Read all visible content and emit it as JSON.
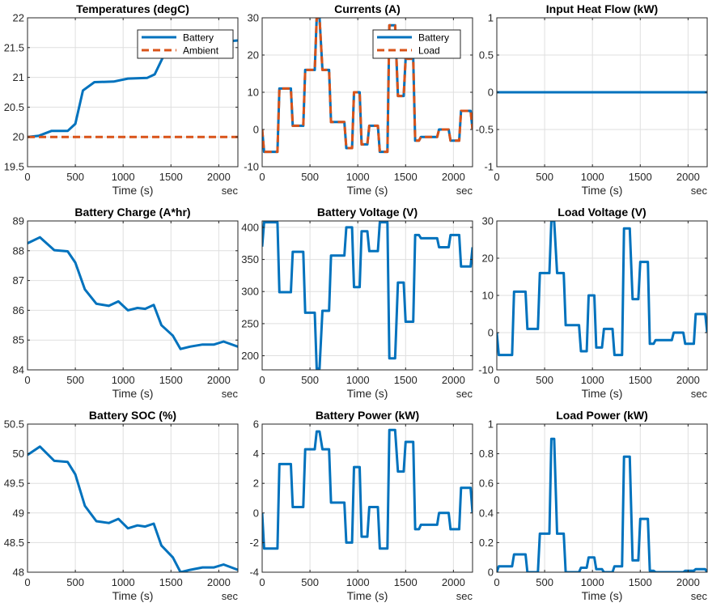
{
  "colors": {
    "blue": "#0072BD",
    "orange": "#D95319",
    "grid": "#dfdfdf",
    "axis": "#262626"
  },
  "chart_data": [
    {
      "type": "line",
      "title": "Temperatures (degC)",
      "xlabel": "Time (s)",
      "xunit": "sec",
      "xlim": [
        0,
        2200
      ],
      "ylim": [
        19.5,
        22
      ],
      "xticks": [
        0,
        500,
        1000,
        1500,
        2000
      ],
      "xtick_labels": [
        "0",
        "500",
        "1000",
        "1500",
        "2000"
      ],
      "yticks": [
        19.5,
        20,
        20.5,
        21,
        21.5,
        22
      ],
      "ytick_labels": [
        "19.5",
        "20",
        "20.5",
        "21",
        "21.5",
        "22"
      ],
      "grid": true,
      "legend": "top-right",
      "series": [
        {
          "name": "Battery",
          "color": "#0072BD",
          "dash": false,
          "x": [
            0,
            120,
            250,
            420,
            500,
            580,
            700,
            900,
            1050,
            1250,
            1330,
            1420,
            1500,
            2050,
            2200
          ],
          "y": [
            20.0,
            20.02,
            20.1,
            20.1,
            20.22,
            20.78,
            20.92,
            20.93,
            20.98,
            20.99,
            21.05,
            21.35,
            21.6,
            21.6,
            21.62
          ]
        },
        {
          "name": "Ambient",
          "color": "#D95319",
          "dash": true,
          "x": [
            0,
            2200
          ],
          "y": [
            20.0,
            20.0
          ]
        }
      ]
    },
    {
      "type": "line",
      "title": "Currents (A)",
      "xlabel": "Time (s)",
      "xunit": "sec",
      "xlim": [
        0,
        2200
      ],
      "ylim": [
        -10,
        30
      ],
      "xticks": [
        0,
        500,
        1000,
        1500,
        2000
      ],
      "xtick_labels": [
        "0",
        "500",
        "1000",
        "1500",
        "2000"
      ],
      "yticks": [
        -10,
        0,
        10,
        20,
        30
      ],
      "ytick_labels": [
        "-10",
        "0",
        "10",
        "20",
        "30"
      ],
      "grid": true,
      "legend": "top-right",
      "series": [
        {
          "name": "Battery",
          "color": "#0072BD",
          "dash": false,
          "x": [
            0,
            20,
            40,
            160,
            180,
            300,
            320,
            430,
            450,
            550,
            570,
            600,
            630,
            700,
            720,
            750,
            780,
            860,
            880,
            940,
            960,
            1020,
            1040,
            1100,
            1120,
            1210,
            1230,
            1310,
            1330,
            1390,
            1420,
            1480,
            1500,
            1580,
            1600,
            1640,
            1660,
            1720,
            1740,
            1830,
            1850,
            1950,
            1970,
            2060,
            2080,
            2180,
            2200
          ],
          "y": [
            0,
            -6,
            -6,
            -6,
            11,
            11,
            1,
            1,
            16,
            16,
            30,
            30,
            16,
            16,
            2,
            2,
            2,
            2,
            -5,
            -5,
            10,
            10,
            -4,
            -4,
            1,
            1,
            -6,
            -6,
            28,
            28,
            9,
            9,
            19,
            19,
            -3,
            -3,
            -2,
            -2,
            -2,
            -2,
            0,
            0,
            -3,
            -3,
            5,
            5,
            0
          ]
        },
        {
          "name": "Load",
          "color": "#D95319",
          "dash": true,
          "x": [
            0,
            20,
            40,
            160,
            180,
            300,
            320,
            430,
            450,
            550,
            570,
            600,
            630,
            700,
            720,
            750,
            780,
            860,
            880,
            940,
            960,
            1020,
            1040,
            1100,
            1120,
            1210,
            1230,
            1310,
            1330,
            1390,
            1420,
            1480,
            1500,
            1580,
            1600,
            1640,
            1660,
            1720,
            1740,
            1830,
            1850,
            1950,
            1970,
            2060,
            2080,
            2180,
            2200
          ],
          "y": [
            0,
            -6,
            -6,
            -6,
            11,
            11,
            1,
            1,
            16,
            16,
            30,
            30,
            16,
            16,
            2,
            2,
            2,
            2,
            -5,
            -5,
            10,
            10,
            -4,
            -4,
            1,
            1,
            -6,
            -6,
            28,
            28,
            9,
            9,
            19,
            19,
            -3,
            -3,
            -2,
            -2,
            -2,
            -2,
            0,
            0,
            -3,
            -3,
            5,
            5,
            0
          ]
        }
      ]
    },
    {
      "type": "line",
      "title": "Input Heat Flow (kW)",
      "xlabel": "Time (s)",
      "xunit": "sec",
      "xlim": [
        0,
        2200
      ],
      "ylim": [
        -1,
        1
      ],
      "xticks": [
        0,
        500,
        1000,
        1500,
        2000
      ],
      "xtick_labels": [
        "0",
        "500",
        "1000",
        "1500",
        "2000"
      ],
      "yticks": [
        -1,
        -0.5,
        0,
        0.5,
        1
      ],
      "ytick_labels": [
        "-1",
        "-0.5",
        "0",
        "0.5",
        "1"
      ],
      "grid": true,
      "series": [
        {
          "color": "#0072BD",
          "dash": false,
          "x": [
            0,
            2200
          ],
          "y": [
            0,
            0
          ]
        }
      ]
    },
    {
      "type": "line",
      "title": "Battery Charge (A*hr)",
      "xlabel": "Time (s)",
      "xunit": "sec",
      "xlim": [
        0,
        2200
      ],
      "ylim": [
        84,
        89
      ],
      "xticks": [
        0,
        500,
        1000,
        1500,
        2000
      ],
      "xtick_labels": [
        "0",
        "500",
        "1000",
        "1500",
        "2000"
      ],
      "yticks": [
        84,
        85,
        86,
        87,
        88,
        89
      ],
      "ytick_labels": [
        "84",
        "85",
        "86",
        "87",
        "88",
        "89"
      ],
      "grid": true,
      "series": [
        {
          "color": "#0072BD",
          "dash": false,
          "x": [
            0,
            130,
            280,
            420,
            500,
            600,
            720,
            850,
            950,
            1050,
            1150,
            1230,
            1320,
            1400,
            1520,
            1600,
            1700,
            1830,
            1950,
            2050,
            2200
          ],
          "y": [
            88.25,
            88.45,
            88.02,
            87.98,
            87.6,
            86.7,
            86.22,
            86.15,
            86.3,
            86.0,
            86.08,
            86.05,
            86.18,
            85.5,
            85.15,
            84.7,
            84.78,
            84.85,
            84.85,
            84.95,
            84.78
          ]
        }
      ]
    },
    {
      "type": "line",
      "title": "Battery Voltage (V)",
      "xlabel": "Time (s)",
      "xunit": "sec",
      "xlim": [
        0,
        2200
      ],
      "ylim": [
        178,
        410
      ],
      "xticks": [
        0,
        500,
        1000,
        1500,
        2000
      ],
      "xtick_labels": [
        "0",
        "500",
        "1000",
        "1500",
        "2000"
      ],
      "yticks": [
        200,
        250,
        300,
        350,
        400
      ],
      "ytick_labels": [
        "200",
        "250",
        "300",
        "350",
        "400"
      ],
      "grid": true,
      "series": [
        {
          "color": "#0072BD",
          "dash": false,
          "x": [
            0,
            20,
            40,
            160,
            180,
            300,
            320,
            430,
            450,
            550,
            570,
            600,
            630,
            700,
            720,
            750,
            780,
            860,
            880,
            940,
            960,
            1020,
            1040,
            1100,
            1120,
            1210,
            1230,
            1310,
            1330,
            1390,
            1420,
            1480,
            1500,
            1580,
            1600,
            1640,
            1660,
            1720,
            1740,
            1830,
            1850,
            1950,
            1970,
            2060,
            2080,
            2180,
            2200
          ],
          "y": [
            370,
            408,
            408,
            408,
            299,
            299,
            362,
            362,
            267,
            267,
            180,
            180,
            270,
            270,
            356,
            356,
            356,
            356,
            400,
            400,
            307,
            307,
            394,
            394,
            363,
            363,
            408,
            408,
            196,
            196,
            314,
            314,
            253,
            253,
            388,
            388,
            383,
            383,
            383,
            383,
            369,
            369,
            388,
            388,
            339,
            339,
            369
          ]
        }
      ]
    },
    {
      "type": "line",
      "title": "Load Voltage (V)",
      "xlabel": "Time (s)",
      "xunit": "sec",
      "xlim": [
        0,
        2200
      ],
      "ylim": [
        -10,
        30
      ],
      "xticks": [
        0,
        500,
        1000,
        1500,
        2000
      ],
      "xtick_labels": [
        "0",
        "500",
        "1000",
        "1500",
        "2000"
      ],
      "yticks": [
        -10,
        0,
        10,
        20,
        30
      ],
      "ytick_labels": [
        "-10",
        "0",
        "10",
        "20",
        "30"
      ],
      "grid": true,
      "series": [
        {
          "color": "#0072BD",
          "dash": false,
          "x": [
            0,
            20,
            40,
            160,
            180,
            300,
            320,
            430,
            450,
            550,
            570,
            600,
            630,
            700,
            720,
            750,
            780,
            860,
            880,
            940,
            960,
            1020,
            1040,
            1100,
            1120,
            1210,
            1230,
            1310,
            1330,
            1390,
            1420,
            1480,
            1500,
            1580,
            1600,
            1640,
            1660,
            1720,
            1740,
            1830,
            1850,
            1950,
            1970,
            2060,
            2080,
            2180,
            2200
          ],
          "y": [
            0,
            -6,
            -6,
            -6,
            11,
            11,
            1,
            1,
            16,
            16,
            30,
            30,
            16,
            16,
            2,
            2,
            2,
            2,
            -5,
            -5,
            10,
            10,
            -4,
            -4,
            1,
            1,
            -6,
            -6,
            28,
            28,
            9,
            9,
            19,
            19,
            -3,
            -3,
            -2,
            -2,
            -2,
            -2,
            0,
            0,
            -3,
            -3,
            5,
            5,
            0
          ]
        }
      ]
    },
    {
      "type": "line",
      "title": "Battery SOC (%)",
      "xlabel": "Time (s)",
      "xunit": "sec",
      "xlim": [
        0,
        2200
      ],
      "ylim": [
        48,
        50.5
      ],
      "xticks": [
        0,
        500,
        1000,
        1500,
        2000
      ],
      "xtick_labels": [
        "0",
        "500",
        "1000",
        "1500",
        "2000"
      ],
      "yticks": [
        48,
        48.5,
        49,
        49.5,
        50,
        50.5
      ],
      "ytick_labels": [
        "48",
        "48.5",
        "49",
        "49.5",
        "50",
        "50.5"
      ],
      "grid": true,
      "series": [
        {
          "color": "#0072BD",
          "dash": false,
          "x": [
            0,
            130,
            280,
            420,
            500,
            600,
            720,
            850,
            950,
            1050,
            1150,
            1230,
            1320,
            1400,
            1520,
            1600,
            1700,
            1830,
            1950,
            2050,
            2200
          ],
          "y": [
            49.98,
            50.12,
            49.88,
            49.86,
            49.65,
            49.12,
            48.86,
            48.83,
            48.9,
            48.74,
            48.79,
            48.77,
            48.82,
            48.45,
            48.25,
            48.0,
            48.04,
            48.08,
            48.08,
            48.13,
            48.04
          ]
        }
      ]
    },
    {
      "type": "line",
      "title": "Battery Power (kW)",
      "xlabel": "Time (s)",
      "xunit": "sec",
      "xlim": [
        0,
        2200
      ],
      "ylim": [
        -4,
        6
      ],
      "xticks": [
        0,
        500,
        1000,
        1500,
        2000
      ],
      "xtick_labels": [
        "0",
        "500",
        "1000",
        "1500",
        "2000"
      ],
      "yticks": [
        -4,
        -2,
        0,
        2,
        4,
        6
      ],
      "ytick_labels": [
        "-4",
        "-2",
        "0",
        "2",
        "4",
        "6"
      ],
      "grid": true,
      "series": [
        {
          "color": "#0072BD",
          "dash": false,
          "x": [
            0,
            20,
            40,
            160,
            180,
            300,
            320,
            430,
            450,
            550,
            570,
            600,
            630,
            700,
            720,
            750,
            780,
            860,
            880,
            940,
            960,
            1020,
            1040,
            1100,
            1120,
            1210,
            1230,
            1310,
            1330,
            1390,
            1420,
            1480,
            1500,
            1580,
            1600,
            1640,
            1660,
            1720,
            1740,
            1830,
            1850,
            1950,
            1970,
            2060,
            2080,
            2180,
            2200
          ],
          "y": [
            0,
            -2.4,
            -2.4,
            -2.4,
            3.3,
            3.3,
            0.4,
            0.4,
            4.3,
            4.3,
            5.5,
            5.5,
            4.3,
            4.3,
            0.7,
            0.7,
            0.7,
            0.7,
            -2.0,
            -2.0,
            3.1,
            3.1,
            -1.6,
            -1.6,
            0.4,
            0.4,
            -2.4,
            -2.4,
            5.6,
            5.6,
            2.8,
            2.8,
            4.8,
            4.8,
            -1.1,
            -1.1,
            -0.8,
            -0.8,
            -0.8,
            -0.8,
            0,
            0,
            -1.1,
            -1.1,
            1.7,
            1.7,
            0
          ]
        }
      ]
    },
    {
      "type": "line",
      "title": "Load Power (kW)",
      "xlabel": "Time (s)",
      "xunit": "sec",
      "xlim": [
        0,
        2200
      ],
      "ylim": [
        0,
        1
      ],
      "xticks": [
        0,
        500,
        1000,
        1500,
        2000
      ],
      "xtick_labels": [
        "0",
        "500",
        "1000",
        "1500",
        "2000"
      ],
      "yticks": [
        0,
        0.2,
        0.4,
        0.6,
        0.8,
        1
      ],
      "ytick_labels": [
        "0",
        "0.2",
        "0.4",
        "0.6",
        "0.8",
        "1"
      ],
      "grid": true,
      "series": [
        {
          "color": "#0072BD",
          "dash": false,
          "x": [
            0,
            20,
            40,
            160,
            180,
            300,
            320,
            430,
            450,
            550,
            570,
            600,
            630,
            700,
            720,
            750,
            780,
            860,
            880,
            940,
            960,
            1020,
            1040,
            1100,
            1120,
            1210,
            1230,
            1310,
            1330,
            1390,
            1420,
            1480,
            1500,
            1580,
            1600,
            1640,
            1660,
            1720,
            1740,
            1830,
            1850,
            1950,
            1970,
            2060,
            2080,
            2180,
            2200
          ],
          "y": [
            0,
            0.04,
            0.04,
            0.04,
            0.12,
            0.12,
            0.0,
            0.0,
            0.26,
            0.26,
            0.9,
            0.9,
            0.26,
            0.26,
            0.0,
            0.0,
            0.0,
            0.0,
            0.03,
            0.03,
            0.1,
            0.1,
            0.02,
            0.02,
            0.0,
            0.0,
            0.04,
            0.04,
            0.78,
            0.78,
            0.08,
            0.08,
            0.36,
            0.36,
            0.01,
            0.01,
            0.0,
            0.0,
            0.0,
            0.0,
            0.0,
            0.0,
            0.01,
            0.01,
            0.02,
            0.02,
            0.0
          ]
        }
      ]
    }
  ]
}
